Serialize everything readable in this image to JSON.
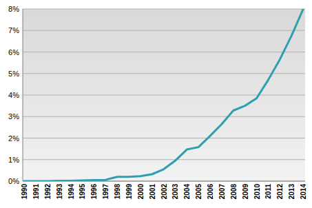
{
  "chart_data": {
    "type": "line",
    "categories": [
      "1990",
      "1991",
      "1992",
      "1993",
      "1994",
      "1995",
      "1996",
      "1997",
      "1998",
      "1999",
      "2000",
      "2001",
      "2002",
      "2003",
      "2004",
      "2005",
      "2006",
      "2007",
      "2008",
      "2009",
      "2010",
      "2011",
      "2012",
      "2013",
      "2014"
    ],
    "values": [
      0,
      0,
      0,
      0.02,
      0.02,
      0.03,
      0.05,
      0.06,
      0.2,
      0.2,
      0.23,
      0.32,
      0.55,
      0.95,
      1.47,
      1.58,
      2.1,
      2.65,
      3.28,
      3.5,
      3.85,
      4.7,
      5.65,
      6.75,
      7.98
    ],
    "color": "#2e9fb0",
    "ylim": [
      0,
      8
    ],
    "yticks": [
      {
        "value": 0,
        "label": "0%"
      },
      {
        "value": 1,
        "label": "1%"
      },
      {
        "value": 2,
        "label": "2%"
      },
      {
        "value": 3,
        "label": "3%"
      },
      {
        "value": 4,
        "label": "4%"
      },
      {
        "value": 5,
        "label": "5%"
      },
      {
        "value": 6,
        "label": "6%"
      },
      {
        "value": 7,
        "label": "7%"
      },
      {
        "value": 8,
        "label": "8%"
      }
    ],
    "grid": true
  }
}
